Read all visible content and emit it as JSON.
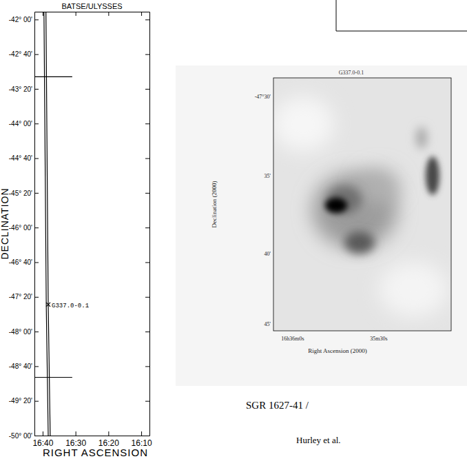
{
  "chart_data": {
    "type": "line",
    "title": "BATSE/ULYSSES",
    "x_label": "RIGHT ASCENSION",
    "y_label": "DECLINATION",
    "xlim": [
      1002.5,
      967.5
    ],
    "ylim": [
      -50,
      -41.85
    ],
    "xticks": [
      {
        "value": 1000,
        "label": "16:40"
      },
      {
        "value": 990,
        "label": "16:30"
      },
      {
        "value": 980,
        "label": "16:20"
      },
      {
        "value": 970,
        "label": "16:10"
      }
    ],
    "yticks": [
      {
        "value": -42,
        "label": "-42° 00'"
      },
      {
        "value": -42.6667,
        "label": "-42° 40'"
      },
      {
        "value": -43.3333,
        "label": "-43° 20'"
      },
      {
        "value": -44,
        "label": "-44° 00'"
      },
      {
        "value": -44.6667,
        "label": "-44° 40'"
      },
      {
        "value": -45.3333,
        "label": "-45° 20'"
      },
      {
        "value": -46,
        "label": "-46° 00'"
      },
      {
        "value": -46.6667,
        "label": "-46° 40'"
      },
      {
        "value": -47.3333,
        "label": "-47° 20'"
      },
      {
        "value": -48,
        "label": "-48° 00'"
      },
      {
        "value": -48.6667,
        "label": "-48° 40'"
      },
      {
        "value": -49.3333,
        "label": "-49° 20'"
      },
      {
        "value": -50,
        "label": "-50° 00'"
      }
    ],
    "series": [
      {
        "color": "#000000",
        "line_style": "solid",
        "x": [
          999.6,
          998.9,
          998.3
        ],
        "values": [
          -41.85,
          -47.5,
          -50
        ]
      },
      {
        "color": "#000000",
        "line_style": "solid",
        "x": [
          999.0,
          998.3,
          997.7
        ],
        "values": [
          -41.85,
          -47.5,
          -50
        ]
      },
      {
        "color": "#000000",
        "line_style": "solid",
        "x": [
          1002.5,
          991
        ],
        "values": [
          -43.1,
          -43.1
        ]
      },
      {
        "color": "#000000",
        "line_style": "solid",
        "x": [
          1002.5,
          991
        ],
        "values": [
          -48.88,
          -48.88
        ]
      }
    ],
    "annotations": [
      {
        "text": "G337.0-0.1",
        "x": 998.3,
        "y": -47.48
      }
    ]
  },
  "inset": {
    "title": "G337.0-0.1",
    "x_label": "Right Ascension (2000)",
    "y_label": "Declination (2000)",
    "xtick_labels": [
      "16h36m0s",
      "35m30s"
    ],
    "ytick_labels": [
      "-47°30'",
      "35'",
      "40'",
      "45'"
    ]
  },
  "caption": [
    "SGR 1627-41 /",
    "Hurley et al."
  ]
}
